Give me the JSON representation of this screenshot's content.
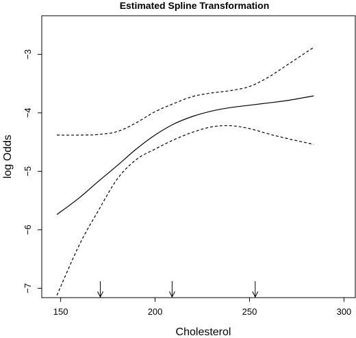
{
  "chart_data": {
    "type": "line",
    "title": "Estimated Spline Transformation",
    "xlabel": "Cholesterol",
    "ylabel": "log Odds",
    "xlim": [
      140,
      306
    ],
    "ylim": [
      -7.16,
      -2.34
    ],
    "x_ticks": [
      150,
      200,
      250,
      300
    ],
    "y_ticks": [
      -7,
      -6,
      -5,
      -4,
      -3
    ],
    "grid": false,
    "legend": "none",
    "series": [
      {
        "style": "solid",
        "x": [
          148,
          160,
          170,
          180,
          190,
          200,
          210,
          220,
          230,
          240,
          250,
          260,
          270,
          284
        ],
        "y": [
          -5.74,
          -5.45,
          -5.17,
          -4.9,
          -4.62,
          -4.38,
          -4.19,
          -4.06,
          -3.97,
          -3.91,
          -3.87,
          -3.83,
          -3.79,
          -3.71
        ]
      },
      {
        "style": "dashed",
        "x": [
          148,
          160,
          170,
          180,
          190,
          200,
          210,
          220,
          230,
          240,
          250,
          260,
          270,
          284
        ],
        "y": [
          -4.38,
          -4.38,
          -4.37,
          -4.32,
          -4.17,
          -3.98,
          -3.84,
          -3.72,
          -3.66,
          -3.62,
          -3.55,
          -3.39,
          -3.18,
          -2.88
        ]
      },
      {
        "style": "dashed",
        "x": [
          148,
          160,
          170,
          180,
          190,
          200,
          210,
          220,
          230,
          240,
          250,
          260,
          270,
          284
        ],
        "y": [
          -7.12,
          -6.25,
          -5.67,
          -5.13,
          -4.8,
          -4.62,
          -4.46,
          -4.33,
          -4.24,
          -4.22,
          -4.27,
          -4.36,
          -4.44,
          -4.54
        ]
      }
    ],
    "knots": [
      171,
      209,
      253
    ]
  }
}
